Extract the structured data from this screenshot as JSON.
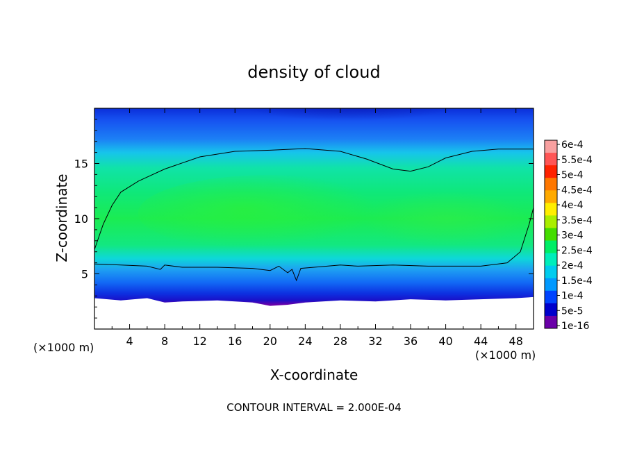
{
  "chart_data": {
    "type": "heatmap",
    "title": "density of cloud",
    "xlabel": "X-coordinate",
    "ylabel": "Z-coordinate",
    "x_unit_label": "(×1000 m)",
    "z_unit_label": "(×1000 m)",
    "xlim": [
      0,
      50
    ],
    "ylim": [
      0,
      20
    ],
    "x_ticks": [
      4,
      8,
      12,
      16,
      20,
      24,
      28,
      32,
      36,
      40,
      44,
      48
    ],
    "y_ticks": [
      5,
      10,
      15
    ],
    "footer": "CONTOUR INTERVAL = 2.000E-04",
    "colorbar": {
      "labels": [
        "6e-4",
        "5.5e-4",
        "5e-4",
        "4.5e-4",
        "4e-4",
        "3.5e-4",
        "3e-4",
        "2.5e-4",
        "2e-4",
        "1.5e-4",
        "1e-4",
        "5e-5",
        "1e-16"
      ],
      "colors": [
        "#f8a0a0",
        "#ff5555",
        "#ff2200",
        "#ff7700",
        "#ffaa00",
        "#ffee00",
        "#aaee00",
        "#44dd00",
        "#00ee66",
        "#00eebb",
        "#00ccee",
        "#0099ff",
        "#0044ff",
        "#0000cc",
        "#6a00a8"
      ]
    },
    "cloud_top_contour": [
      [
        0,
        7.2
      ],
      [
        1,
        9.5
      ],
      [
        2,
        11.2
      ],
      [
        3,
        12.4
      ],
      [
        5,
        13.4
      ],
      [
        8,
        14.5
      ],
      [
        12,
        15.6
      ],
      [
        16,
        16.1
      ],
      [
        20,
        16.2
      ],
      [
        24,
        16.35
      ],
      [
        28,
        16.1
      ],
      [
        31,
        15.4
      ],
      [
        34,
        14.5
      ],
      [
        36,
        14.3
      ],
      [
        38,
        14.7
      ],
      [
        40,
        15.5
      ],
      [
        43,
        16.1
      ],
      [
        46,
        16.3
      ],
      [
        50,
        16.3
      ]
    ],
    "cloud_base_contour": [
      [
        0,
        5.9
      ],
      [
        3,
        5.8
      ],
      [
        6,
        5.7
      ],
      [
        7.5,
        5.4
      ],
      [
        8,
        5.8
      ],
      [
        10,
        5.6
      ],
      [
        14,
        5.6
      ],
      [
        18,
        5.5
      ],
      [
        20,
        5.3
      ],
      [
        21,
        5.7
      ],
      [
        22,
        5.1
      ],
      [
        22.5,
        5.4
      ],
      [
        23,
        4.4
      ],
      [
        23.5,
        5.5
      ],
      [
        25,
        5.6
      ],
      [
        28,
        5.8
      ],
      [
        30,
        5.7
      ],
      [
        34,
        5.8
      ],
      [
        38,
        5.7
      ],
      [
        44,
        5.7
      ],
      [
        47,
        6.0
      ],
      [
        48.5,
        7.0
      ],
      [
        49.5,
        9.5
      ],
      [
        50,
        11
      ]
    ],
    "surface_edge": [
      [
        0,
        2.8
      ],
      [
        3,
        2.6
      ],
      [
        6,
        2.8
      ],
      [
        8,
        2.4
      ],
      [
        10,
        2.5
      ],
      [
        14,
        2.6
      ],
      [
        18,
        2.4
      ],
      [
        20,
        2.1
      ],
      [
        22,
        2.2
      ],
      [
        24,
        2.4
      ],
      [
        28,
        2.6
      ],
      [
        32,
        2.5
      ],
      [
        36,
        2.7
      ],
      [
        40,
        2.6
      ],
      [
        44,
        2.7
      ],
      [
        48,
        2.8
      ],
      [
        50,
        2.9
      ]
    ],
    "colors": {
      "frame": "#000000",
      "background": "#ffffff"
    }
  }
}
